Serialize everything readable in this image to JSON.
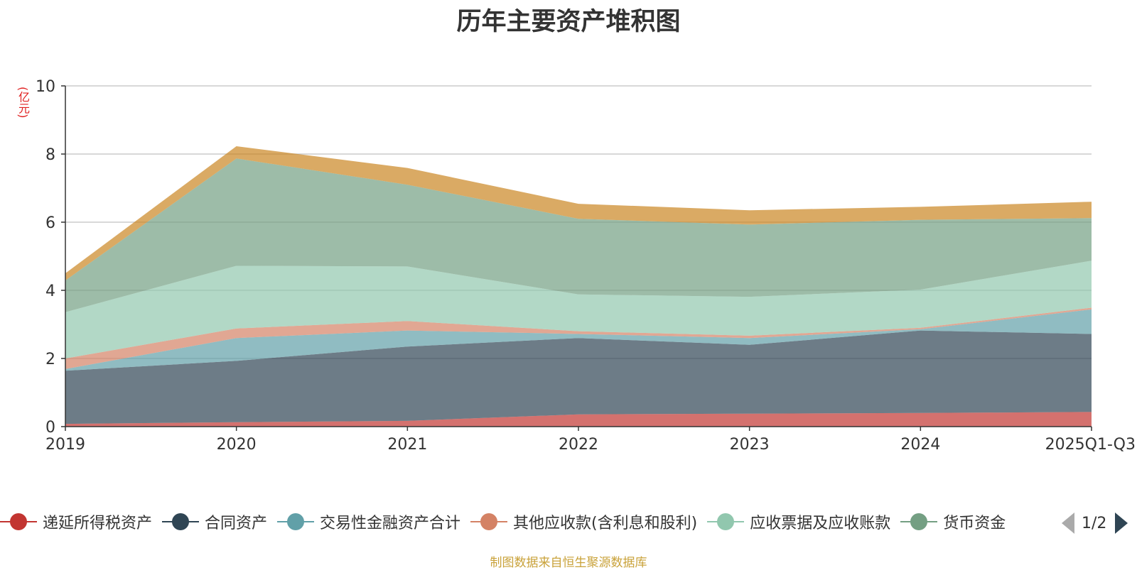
{
  "chart_data": {
    "type": "area",
    "stacked": true,
    "title": "历年主要资产堆积图",
    "ylabel": "(亿元)",
    "xlabel": "",
    "categories": [
      "2019",
      "2020",
      "2021",
      "2022",
      "2023",
      "2024",
      "2025Q1-Q3"
    ],
    "ylim": [
      0,
      10
    ],
    "yticks": [
      0,
      2,
      4,
      6,
      8,
      10
    ],
    "grid": true,
    "series": [
      {
        "name": "递延所得税资产",
        "color": "#c23531",
        "values": [
          0.08,
          0.13,
          0.17,
          0.36,
          0.38,
          0.4,
          0.43
        ]
      },
      {
        "name": "合同资产",
        "color": "#2f4554",
        "values": [
          1.56,
          1.8,
          2.18,
          2.24,
          2.02,
          2.42,
          2.29
        ]
      },
      {
        "name": "交易性金融资产合计",
        "color": "#61a0a8",
        "values": [
          0.05,
          0.67,
          0.47,
          0.12,
          0.2,
          0.04,
          0.72
        ]
      },
      {
        "name": "其他应收款(含利息和股利)",
        "color": "#d48265",
        "values": [
          0.31,
          0.28,
          0.28,
          0.08,
          0.07,
          0.04,
          0.05
        ]
      },
      {
        "name": "应收票据及应收账款",
        "color": "#91c7ae",
        "values": [
          1.36,
          1.84,
          1.6,
          1.08,
          1.14,
          1.12,
          1.38
        ]
      },
      {
        "name": "货币资金",
        "color": "#749f83",
        "values": [
          0.93,
          3.15,
          2.4,
          2.22,
          2.12,
          2.05,
          1.25
        ]
      },
      {
        "name": "",
        "color": "#ca8622",
        "values": [
          0.21,
          0.36,
          0.49,
          0.44,
          0.42,
          0.38,
          0.48
        ]
      }
    ]
  },
  "legend": {
    "items": [
      {
        "label": "递延所得税资产",
        "color": "#c23531"
      },
      {
        "label": "合同资产",
        "color": "#2f4554"
      },
      {
        "label": "交易性金融资产合计",
        "color": "#61a0a8"
      },
      {
        "label": "其他应收款(含利息和股利)",
        "color": "#d48265"
      },
      {
        "label": "应收票据及应收账款",
        "color": "#91c7ae"
      },
      {
        "label": "货币资金",
        "color": "#749f83"
      }
    ],
    "page": "1/2"
  },
  "footer": "制图数据来自恒生聚源数据库"
}
